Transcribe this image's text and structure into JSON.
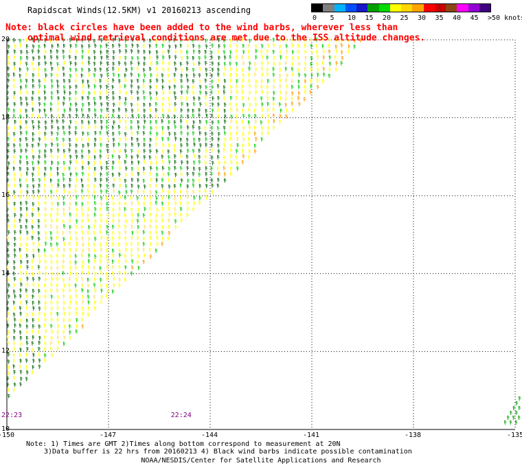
{
  "title": "Rapidscat Winds(12.5KM) v1 20160213 ascending",
  "legend": {
    "colors": [
      "#000000",
      "#808080",
      "#00b4ff",
      "#0050ff",
      "#1919c8",
      "#00a000",
      "#00dc00",
      "#ffff00",
      "#ffd700",
      "#ffa500",
      "#ff0000",
      "#c80000",
      "#8b4513",
      "#ff00ff",
      "#9400d3",
      "#400080"
    ],
    "labels": [
      {
        "text": "0",
        "pos": 0
      },
      {
        "text": "5",
        "pos": 1
      },
      {
        "text": "10",
        "pos": 2
      },
      {
        "text": "15",
        "pos": 3
      },
      {
        "text": "20",
        "pos": 4
      },
      {
        "text": "25",
        "pos": 5
      },
      {
        "text": "30",
        "pos": 6
      },
      {
        "text": "35",
        "pos": 7
      },
      {
        "text": "40",
        "pos": 8
      },
      {
        "text": "45",
        "pos": 9
      },
      {
        "text": ">50 knots",
        "pos": 10
      }
    ]
  },
  "note": [
    "Note: black circles have been added to the wind barbs, wherever less than",
    "optimal wind retrieval conditions are met due to the ISS altitude changes."
  ],
  "map": {
    "lon_range": [
      -150,
      -135
    ],
    "lat_range": [
      10,
      20
    ],
    "lon_ticks": [
      "-150",
      "-147",
      "-144",
      "-141",
      "-138",
      "-135"
    ],
    "lat_ticks": [
      "10",
      "12",
      "14",
      "16",
      "18",
      "20"
    ],
    "time_labels": [
      {
        "text": "22:23",
        "lon": -150
      },
      {
        "text": "22:24",
        "lon": -145
      }
    ]
  },
  "footnote": [
    "Note: 1) Times are GMT 2)Times along bottom correspond to measurement at 20N",
    "3)Data buffer is 22 hrs from 20160213 4) Black wind barbs indicate possible contamination"
  ],
  "credit": "NOAA/NESDIS/Center for Satellite Applications and Research"
}
